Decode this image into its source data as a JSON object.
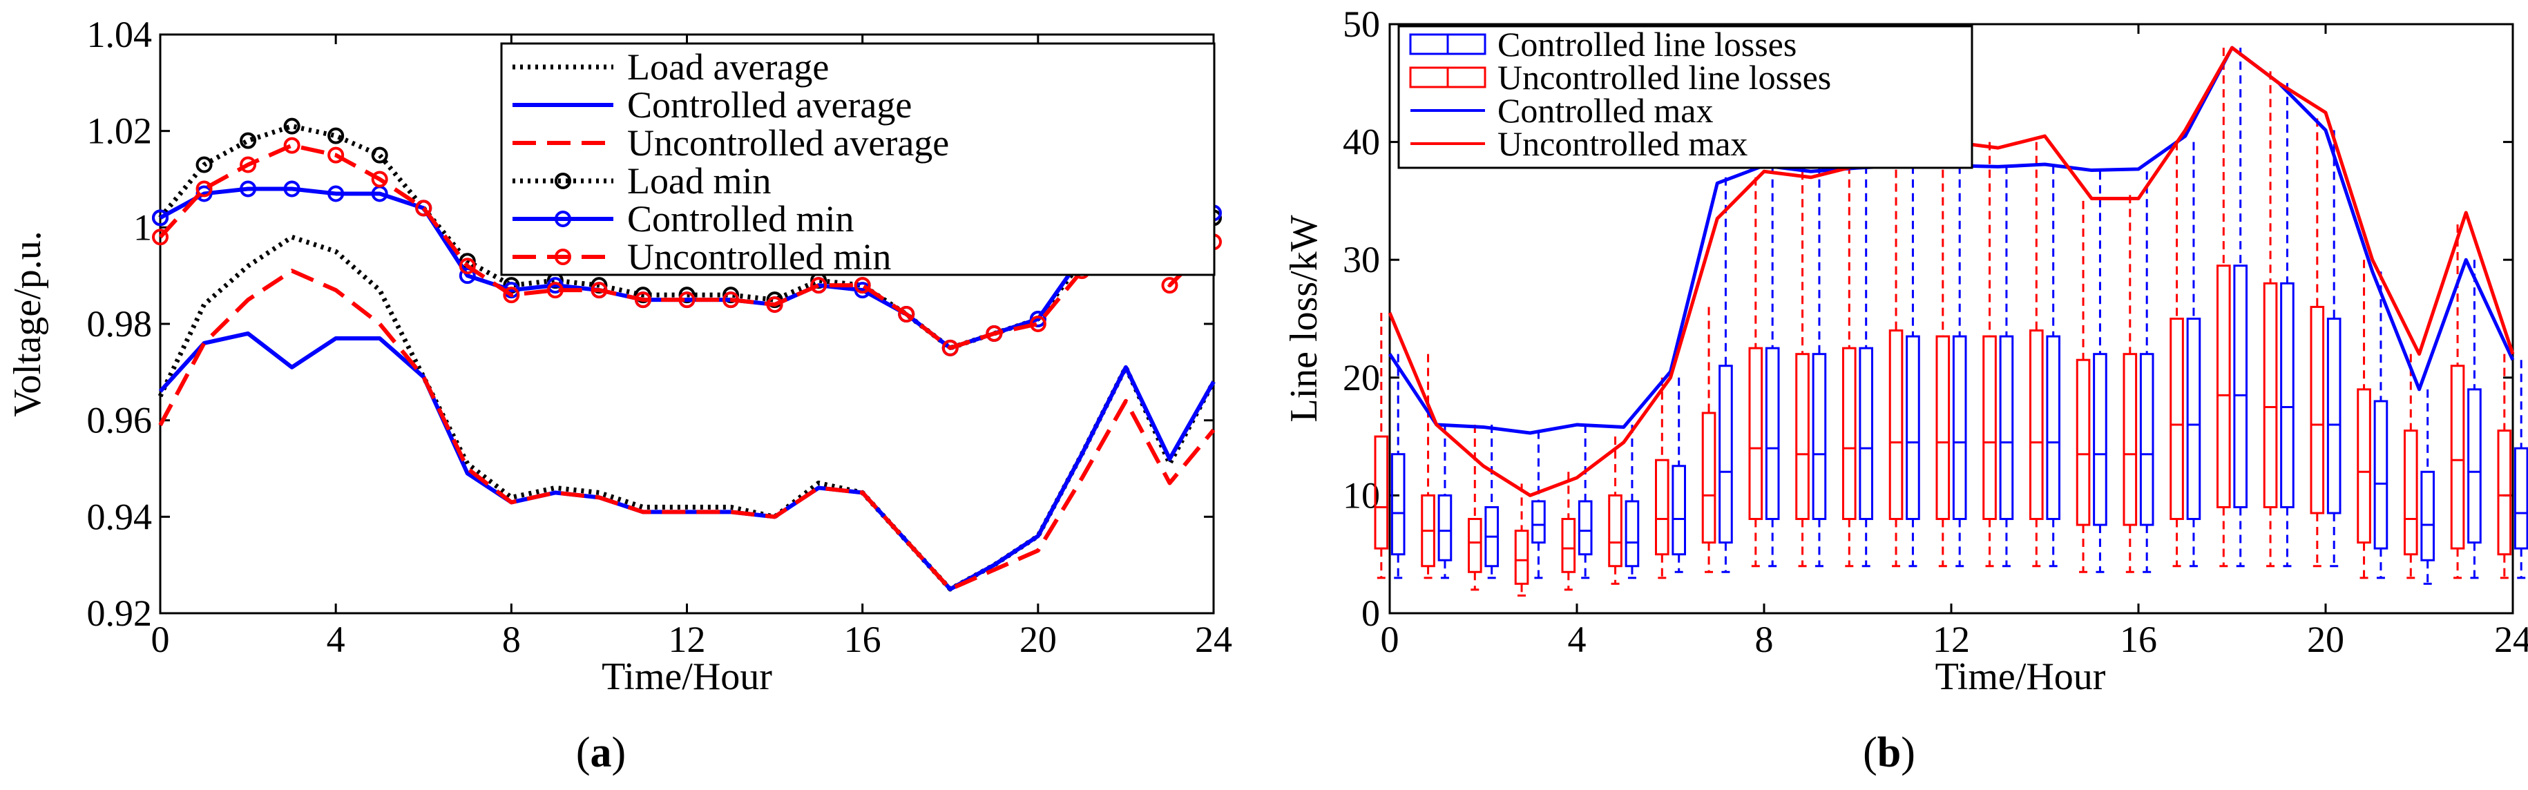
{
  "colors": {
    "load": "#000000",
    "controlled": "#0000ff",
    "uncontrolled": "#ff0000",
    "axis": "#000000"
  },
  "panels": {
    "a": {
      "label": "a"
    },
    "b": {
      "label": "b"
    }
  },
  "chart_data": [
    {
      "id": "a",
      "type": "line",
      "panel_label": "(a)",
      "xlabel": "Time/Hour",
      "ylabel": "Voltage/p.u.",
      "xlim": [
        0,
        24
      ],
      "ylim": [
        0.92,
        1.04
      ],
      "xticks": [
        0,
        4,
        8,
        12,
        16,
        20,
        24
      ],
      "xtick_labels": [
        "0",
        "4",
        "8",
        "12",
        "16",
        "20",
        "24"
      ],
      "yticks": [
        0.92,
        0.94,
        0.96,
        0.98,
        1.0,
        1.02,
        1.04
      ],
      "ytick_labels": [
        "0.92",
        "0.94",
        "0.96",
        "0.98",
        "1",
        "1.02",
        "1.04"
      ],
      "grid": false,
      "legend_position": "top-right",
      "x": [
        0,
        1,
        2,
        3,
        4,
        5,
        6,
        7,
        8,
        9,
        10,
        11,
        12,
        13,
        14,
        15,
        16,
        17,
        18,
        19,
        20,
        21,
        22,
        23,
        24
      ],
      "series": [
        {
          "name": "Load average",
          "style": "dotted",
          "color": "#000000",
          "marker": "none",
          "values": [
            0.965,
            0.984,
            0.992,
            0.998,
            0.995,
            0.987,
            0.969,
            0.951,
            0.944,
            0.946,
            0.945,
            0.942,
            0.942,
            0.942,
            0.94,
            0.947,
            0.945,
            0.935,
            0.925,
            0.93,
            0.936,
            0.953,
            0.971,
            0.951,
            0.968
          ]
        },
        {
          "name": "Controlled average",
          "style": "solid",
          "color": "#0000ff",
          "marker": "none",
          "values": [
            0.966,
            0.976,
            0.978,
            0.971,
            0.977,
            0.977,
            0.969,
            0.949,
            0.943,
            0.945,
            0.944,
            0.941,
            0.941,
            0.941,
            0.94,
            0.946,
            0.945,
            0.935,
            0.925,
            0.93,
            0.936,
            0.953,
            0.971,
            0.952,
            0.968
          ]
        },
        {
          "name": "Uncontrolled average",
          "style": "dashed",
          "color": "#ff0000",
          "marker": "none",
          "values": [
            0.959,
            0.976,
            0.985,
            0.991,
            0.987,
            0.98,
            0.969,
            0.95,
            0.943,
            0.945,
            0.944,
            0.941,
            0.941,
            0.941,
            0.94,
            0.946,
            0.945,
            0.935,
            0.925,
            0.929,
            0.933,
            0.948,
            0.964,
            0.947,
            0.958
          ]
        },
        {
          "name": "Load min",
          "style": "dotted",
          "color": "#000000",
          "marker": "circle",
          "values": [
            1.002,
            1.013,
            1.018,
            1.021,
            1.019,
            1.015,
            1.004,
            0.993,
            0.988,
            0.989,
            0.988,
            0.986,
            0.986,
            0.986,
            0.985,
            0.989,
            0.988,
            0.982,
            0.975,
            0.978,
            0.981,
            0.993,
            1.005,
            0.992,
            1.002
          ]
        },
        {
          "name": "Controlled min",
          "style": "solid",
          "color": "#0000ff",
          "marker": "circle",
          "values": [
            1.002,
            1.007,
            1.008,
            1.008,
            1.007,
            1.007,
            1.004,
            0.99,
            0.987,
            0.988,
            0.987,
            0.985,
            0.985,
            0.985,
            0.984,
            0.988,
            0.987,
            0.982,
            0.975,
            0.978,
            0.981,
            0.994,
            1.006,
            0.992,
            1.003
          ]
        },
        {
          "name": "Uncontrolled min",
          "style": "dashed",
          "color": "#ff0000",
          "marker": "circle",
          "values": [
            0.998,
            1.008,
            1.013,
            1.017,
            1.015,
            1.01,
            1.004,
            0.992,
            0.986,
            0.987,
            0.987,
            0.985,
            0.985,
            0.985,
            0.984,
            0.988,
            0.988,
            0.982,
            0.975,
            0.978,
            0.98,
            0.991,
            1.002,
            0.988,
            0.997
          ]
        }
      ]
    },
    {
      "id": "b",
      "type": "box",
      "panel_label": "(b)",
      "xlabel": "Time/Hour",
      "ylabel": "Line loss/kW",
      "xlim": [
        0,
        24
      ],
      "ylim": [
        0,
        50
      ],
      "xticks": [
        0,
        4,
        8,
        12,
        16,
        20,
        24
      ],
      "xtick_labels": [
        "0",
        "4",
        "8",
        "12",
        "16",
        "20",
        "24"
      ],
      "yticks": [
        0,
        10,
        20,
        30,
        40,
        50
      ],
      "ytick_labels": [
        "0",
        "10",
        "20",
        "30",
        "40",
        "50"
      ],
      "grid": false,
      "legend_position": "top-left",
      "legend": [
        "Controlled line losses",
        "Uncontrolled line losses",
        "Controlled max",
        "Uncontrolled max"
      ],
      "x": [
        0,
        1,
        2,
        3,
        4,
        5,
        6,
        7,
        8,
        9,
        10,
        11,
        12,
        13,
        14,
        15,
        16,
        17,
        18,
        19,
        20,
        21,
        22,
        23,
        24
      ],
      "series": [
        {
          "name": "Uncontrolled line losses",
          "kind": "box",
          "color": "#ff0000",
          "whisker_low": [
            3,
            3,
            2,
            1.5,
            2,
            2.5,
            3,
            3.5,
            4,
            4,
            4,
            4,
            4,
            4,
            4,
            3.5,
            3.5,
            4,
            4,
            4,
            4,
            3,
            3,
            3,
            3
          ],
          "q1": [
            5.5,
            4,
            3.5,
            2.5,
            3.5,
            4,
            5,
            6,
            8,
            8,
            8,
            8,
            8,
            8,
            8,
            7.5,
            7.5,
            8,
            9,
            9,
            8.5,
            6,
            5,
            5.5,
            5
          ],
          "median": [
            9,
            7,
            6,
            4.5,
            5.5,
            6,
            8,
            10,
            14,
            13.5,
            14,
            14.5,
            14.5,
            14.5,
            14.5,
            13.5,
            13.5,
            16,
            18.5,
            17.5,
            16,
            12,
            8,
            13,
            10
          ],
          "q3": [
            15,
            10,
            8,
            7,
            8,
            10,
            13,
            17,
            22.5,
            22,
            22.5,
            24,
            23.5,
            23.5,
            24,
            21.5,
            22,
            25,
            29.5,
            28,
            26,
            19,
            15.5,
            21,
            15.5
          ],
          "whisker_high": [
            25.5,
            22,
            16,
            11,
            12,
            15,
            20,
            26,
            37,
            37.5,
            38,
            40,
            40,
            40,
            40,
            35,
            35.5,
            40,
            48,
            46,
            42,
            30,
            22,
            33,
            22
          ]
        },
        {
          "name": "Controlled line losses",
          "kind": "box",
          "color": "#0000ff",
          "whisker_low": [
            3,
            3,
            3,
            3,
            3,
            3,
            3.5,
            3.5,
            4,
            4,
            4,
            4,
            4,
            4,
            4,
            3.5,
            3.5,
            4,
            4,
            4,
            4,
            3,
            2.5,
            3,
            3
          ],
          "q1": [
            5,
            4.5,
            4,
            6,
            5,
            4,
            5,
            6,
            8,
            8,
            8,
            8,
            8,
            8,
            8,
            7.5,
            7.5,
            8,
            9,
            9,
            8.5,
            5.5,
            4.5,
            6,
            5.5
          ],
          "median": [
            8.5,
            7,
            6.5,
            7.5,
            7,
            6,
            8,
            12,
            14,
            13.5,
            14,
            14.5,
            14.5,
            14.5,
            14.5,
            13.5,
            13.5,
            16,
            18.5,
            17.5,
            16,
            11,
            7.5,
            12,
            8.5
          ],
          "q3": [
            13.5,
            10,
            9,
            9.5,
            9.5,
            9.5,
            12.5,
            21,
            22.5,
            22,
            22.5,
            23.5,
            23.5,
            23.5,
            23.5,
            22,
            22,
            25,
            29.5,
            28,
            25,
            18,
            12,
            19,
            14
          ],
          "whisker_high": [
            22,
            16,
            16,
            15.5,
            16,
            16,
            20,
            37,
            38,
            38,
            38,
            38,
            38,
            38,
            38,
            37.5,
            37.5,
            40,
            48,
            45,
            41,
            29,
            19,
            30,
            21.5
          ]
        },
        {
          "name": "Controlled max",
          "kind": "line",
          "color": "#0000ff",
          "values": [
            22,
            16,
            15.8,
            15.3,
            16,
            15.8,
            20.5,
            36.5,
            38,
            37.5,
            37.8,
            38,
            38,
            37.9,
            38.1,
            37.6,
            37.7,
            40.5,
            48,
            45,
            41,
            29,
            19,
            30,
            21.5
          ]
        },
        {
          "name": "Uncontrolled max",
          "kind": "line",
          "color": "#ff0000",
          "values": [
            25.5,
            16,
            12.5,
            10,
            11.5,
            14.5,
            20,
            33.5,
            37.5,
            37,
            38,
            40,
            40,
            39.5,
            40.5,
            35.2,
            35.2,
            41,
            48,
            45,
            42.5,
            30,
            22,
            34,
            22
          ]
        }
      ]
    }
  ]
}
